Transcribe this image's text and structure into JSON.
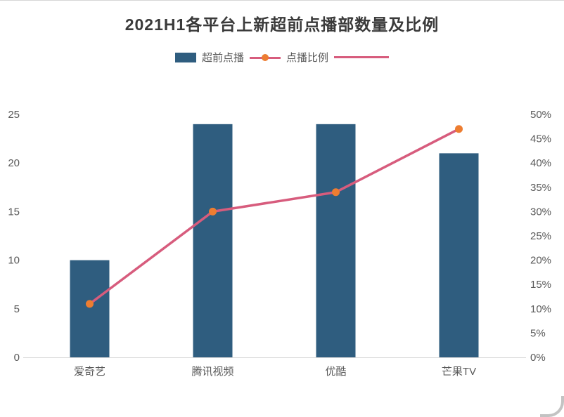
{
  "page": {
    "background": "#ffffff"
  },
  "chart_data": {
    "type": "bar+line",
    "title": "2021H1各平台上新超前点播部数量及比例",
    "categories": [
      "爱奇艺",
      "腾讯视频",
      "优酷",
      "芒果TV"
    ],
    "series": [
      {
        "name": "超前点播",
        "type": "bar",
        "axis": "left",
        "values": [
          10,
          24,
          24,
          21
        ],
        "color": "#2F5D7F"
      },
      {
        "name": "点播比例",
        "type": "line",
        "axis": "right",
        "values": [
          11,
          30,
          34,
          47
        ],
        "unit": "%",
        "line_color": "#D75C7D",
        "marker_color": "#ED7D31"
      }
    ],
    "left_axis": {
      "min": 0,
      "max": 25,
      "ticks": [
        0,
        5,
        10,
        15,
        20,
        25
      ]
    },
    "right_axis": {
      "min": 0,
      "max": 50,
      "ticks": [
        0,
        5,
        10,
        15,
        20,
        25,
        30,
        35,
        40,
        45,
        50
      ],
      "unit": "%"
    },
    "legend_position": "top-center",
    "grid": false,
    "colors": {
      "axis_text": "#595959",
      "axis_line": "#D9D9D9",
      "title_text": "#3A3A3A"
    }
  }
}
